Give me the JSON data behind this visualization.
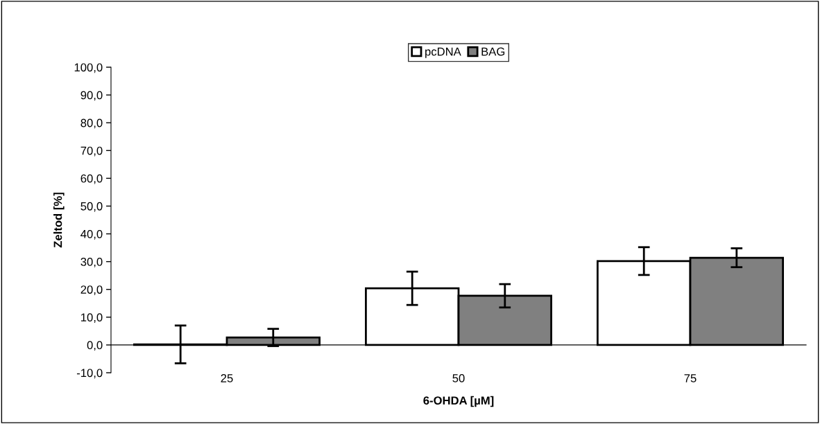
{
  "chart_data": {
    "type": "bar",
    "xlabel": "6-OHDA [µM]",
    "ylabel": "Zeltod [%]",
    "categories": [
      "25",
      "50",
      "75"
    ],
    "series": [
      {
        "name": "pcDNA",
        "color": "#ffffff",
        "values": [
          0.2,
          20.4,
          30.2
        ],
        "errors": [
          6.8,
          6.0,
          5.0
        ]
      },
      {
        "name": "BAG",
        "color": "#808080",
        "values": [
          2.7,
          17.7,
          31.4
        ],
        "errors": [
          3.1,
          4.2,
          3.4
        ]
      }
    ],
    "ylim": [
      -10,
      100
    ],
    "yticks": [
      {
        "value": -10,
        "label": "-10,0"
      },
      {
        "value": 0,
        "label": "0,0"
      },
      {
        "value": 10,
        "label": "10,0"
      },
      {
        "value": 20,
        "label": "20,0"
      },
      {
        "value": 30,
        "label": "30,0"
      },
      {
        "value": 40,
        "label": "40,0"
      },
      {
        "value": 50,
        "label": "50,0"
      },
      {
        "value": 60,
        "label": "60,0"
      },
      {
        "value": 70,
        "label": "70,0"
      },
      {
        "value": 80,
        "label": "80,0"
      },
      {
        "value": 90,
        "label": "90,0"
      },
      {
        "value": 100,
        "label": "100,0"
      }
    ],
    "grid": false,
    "legend": "top"
  }
}
